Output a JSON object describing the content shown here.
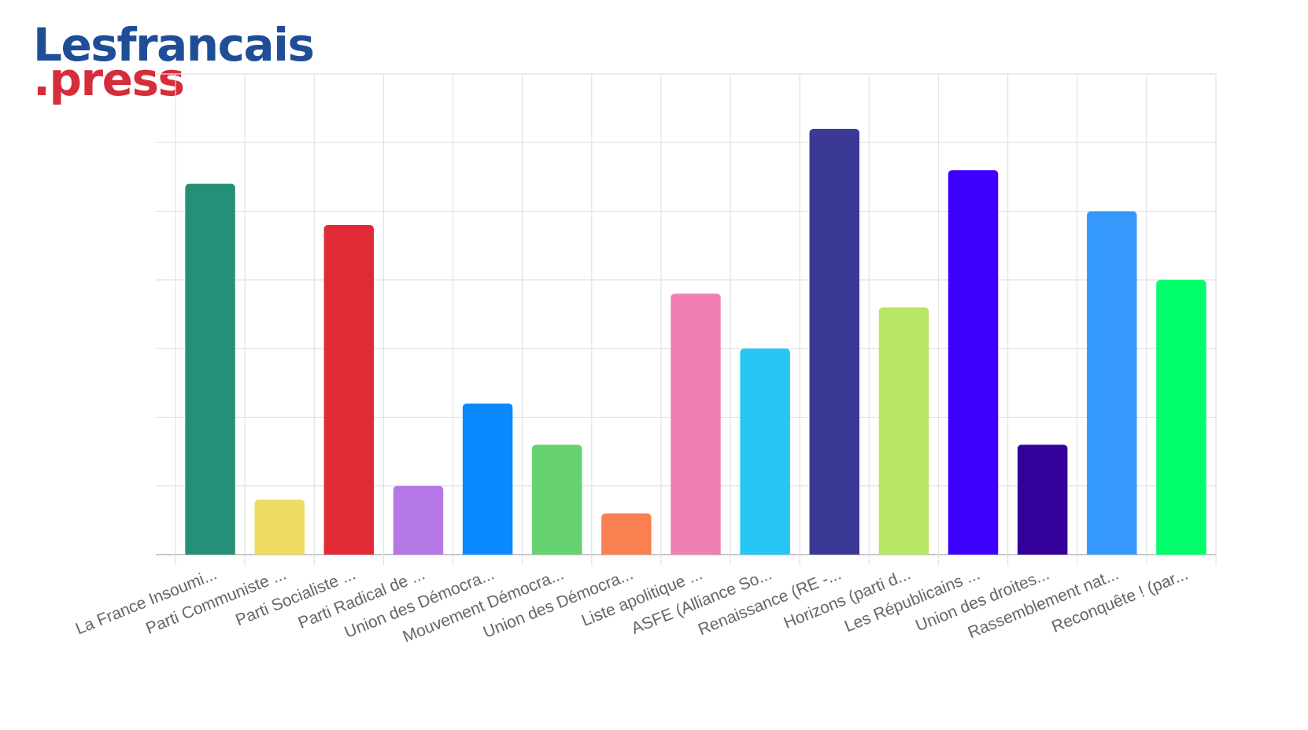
{
  "logo": {
    "line1": "Lesfrancais",
    "line2": ".press"
  },
  "chart_data": {
    "type": "bar",
    "title": "",
    "xlabel": "",
    "ylabel": "",
    "ylim": [
      0,
      7
    ],
    "grid": true,
    "categories": [
      "La France Insoumi...",
      "Parti Communiste ...",
      "Parti Socialiste ...",
      "Parti Radical de ...",
      "Union des Démocra...",
      "Mouvement Démocra...",
      "Union des Démocra...",
      "Liste apolitique ...",
      "ASFE (Alliance So...",
      "Renaissance (RE -...",
      "Horizons (parti d...",
      "Les Républicains ...",
      "Union des droites...",
      "Rassemblement nat...",
      "Reconquête ! (par..."
    ],
    "values": [
      5.4,
      0.8,
      4.8,
      1.0,
      2.2,
      1.6,
      0.6,
      3.8,
      3.0,
      6.2,
      3.6,
      5.6,
      1.6,
      5.0,
      4.0
    ],
    "colors": [
      "#268f77",
      "#efdc62",
      "#e12a36",
      "#b577e6",
      "#0a89ff",
      "#67d272",
      "#fa8052",
      "#f07fb2",
      "#26c7f2",
      "#3c3896",
      "#b9e566",
      "#3d00ff",
      "#330099",
      "#3498fd",
      "#00ff6a"
    ]
  }
}
